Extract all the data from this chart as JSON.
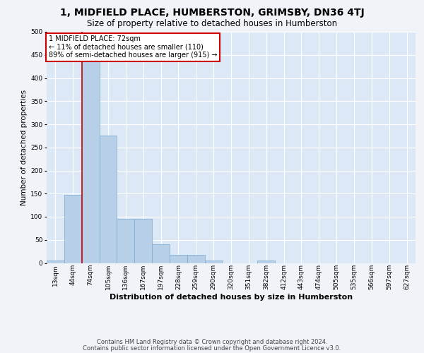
{
  "title": "1, MIDFIELD PLACE, HUMBERSTON, GRIMSBY, DN36 4TJ",
  "subtitle": "Size of property relative to detached houses in Humberston",
  "xlabel": "Distribution of detached houses by size in Humberston",
  "ylabel": "Number of detached properties",
  "footer_line1": "Contains HM Land Registry data © Crown copyright and database right 2024.",
  "footer_line2": "Contains public sector information licensed under the Open Government Licence v3.0.",
  "annotation_line1": "1 MIDFIELD PLACE: 72sqm",
  "annotation_line2": "← 11% of detached houses are smaller (110)",
  "annotation_line3": "89% of semi-detached houses are larger (915) →",
  "bar_labels": [
    "13sqm",
    "44sqm",
    "74sqm",
    "105sqm",
    "136sqm",
    "167sqm",
    "197sqm",
    "228sqm",
    "259sqm",
    "290sqm",
    "320sqm",
    "351sqm",
    "382sqm",
    "412sqm",
    "443sqm",
    "474sqm",
    "505sqm",
    "535sqm",
    "566sqm",
    "597sqm",
    "627sqm"
  ],
  "bar_values": [
    5,
    148,
    460,
    275,
    95,
    95,
    40,
    18,
    18,
    5,
    0,
    0,
    5,
    0,
    0,
    0,
    0,
    0,
    0,
    0,
    0
  ],
  "bar_color": "#b8cfe8",
  "bar_edge_color": "#7aaad0",
  "vline_color": "#cc0000",
  "vline_index": 2,
  "ylim": [
    0,
    500
  ],
  "yticks": [
    0,
    50,
    100,
    150,
    200,
    250,
    300,
    350,
    400,
    450,
    500
  ],
  "bg_color": "#dce8f5",
  "fig_bg_color": "#f0f4f8",
  "grid_color": "#ffffff",
  "title_fontsize": 10,
  "subtitle_fontsize": 8.5,
  "ylabel_fontsize": 7.5,
  "xlabel_fontsize": 8,
  "tick_fontsize": 6.5,
  "annotation_fontsize": 7,
  "footer_fontsize": 6
}
